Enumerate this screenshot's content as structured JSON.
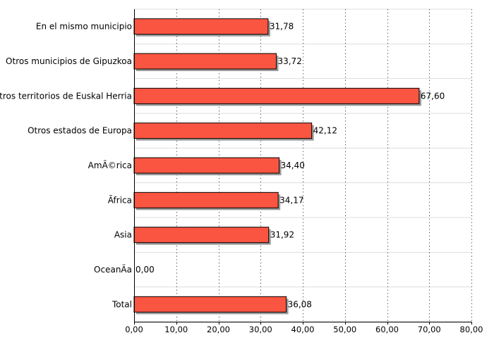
{
  "chart_data": {
    "type": "bar",
    "orientation": "horizontal",
    "categories": [
      "En el mismo municipio",
      "Otros municipios de Gipuzkoa",
      "Otros territorios de Euskal Herria",
      "Otros estados de Europa",
      "AmÃ©rica",
      "Ãfrica",
      "Asia",
      "OceanÃ­a",
      "Total"
    ],
    "values": [
      31.78,
      33.72,
      67.6,
      42.12,
      34.4,
      34.17,
      31.92,
      0.0,
      36.08
    ],
    "value_labels": [
      "31,78",
      "33,72",
      "67,60",
      "42,12",
      "34,40",
      "34,17",
      "31,92",
      "0,00",
      "36,08"
    ],
    "xlim": [
      0,
      80
    ],
    "x_ticks": [
      0,
      10,
      20,
      30,
      40,
      50,
      60,
      70,
      80
    ],
    "x_tick_labels": [
      "0,00",
      "10,00",
      "20,00",
      "30,00",
      "40,00",
      "50,00",
      "60,00",
      "70,00",
      "80,00"
    ],
    "title": "",
    "xlabel": "",
    "ylabel": "",
    "grid": true,
    "legend": "none",
    "colors": {
      "bar_fill": "#fa5541",
      "bar_stroke": "#000000",
      "bar_shadow": "#9a9a9a",
      "grid_vertical": "#444444",
      "grid_horizontal": "#dddddd"
    }
  }
}
